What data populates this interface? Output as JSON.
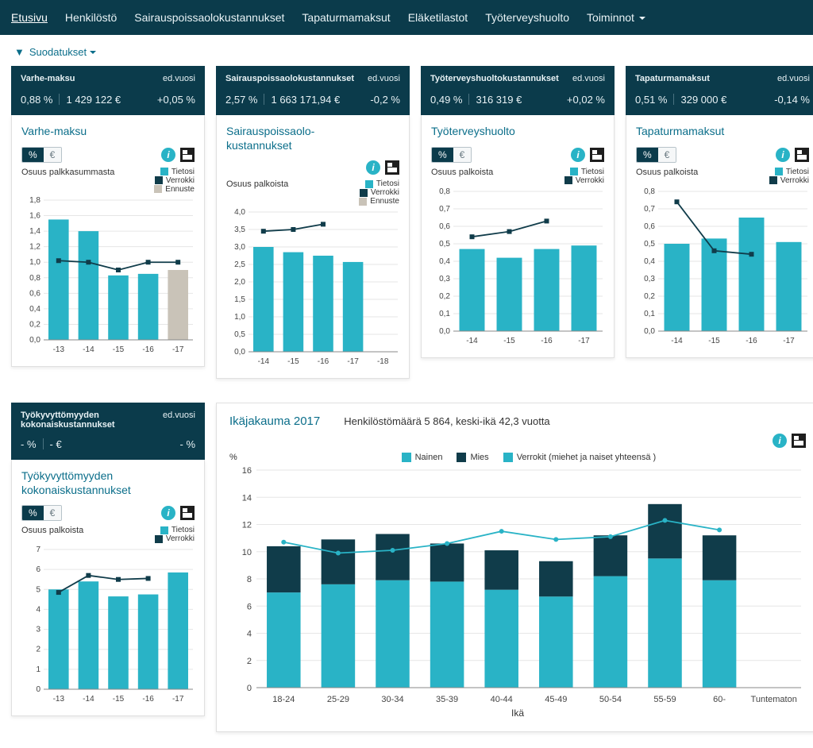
{
  "colors": {
    "nav_bg": "#0b3b4b",
    "accent": "#29b3c6",
    "dark": "#103c4a",
    "grey_bar": "#c9c3b8",
    "grid": "#e6e6e6",
    "teal_link": "#0b6e8a"
  },
  "nav": {
    "items": [
      "Etusivu",
      "Henkilöstö",
      "Sairauspoissaolokustannukset",
      "Tapaturmamaksut",
      "Eläketilastot",
      "Työterveyshuolto",
      "Toiminnot"
    ],
    "active_index": 0,
    "dropdown_index": 6
  },
  "filter": {
    "label": "Suodatukset"
  },
  "kpis": [
    {
      "title": "Varhe-maksu",
      "prev_label": "ed.vuosi",
      "pct": "0,88 %",
      "value": "1 429 122 €",
      "delta": "+0,05 %"
    },
    {
      "title": "Sairauspoissaolokustannukset",
      "prev_label": "ed.vuosi",
      "pct": "2,57 %",
      "value": "1 663 171,94 €",
      "delta": "-0,2 %"
    },
    {
      "title": "Työterveyshuoltokustannukset",
      "prev_label": "ed.vuosi",
      "pct": "0,49 %",
      "value": "316 319 €",
      "delta": "+0,02 %"
    },
    {
      "title": "Tapaturmamaksut",
      "prev_label": "ed.vuosi",
      "pct": "0,51 %",
      "value": "329 000 €",
      "delta": "-0,14 %"
    }
  ],
  "kpi2": {
    "title": "Työkyvyttömyyden kokonaiskustannukset",
    "prev_label": "ed.vuosi",
    "pct": "- %",
    "value": "- €",
    "delta": "- %"
  },
  "toggle": {
    "pct": "%",
    "eur": "€"
  },
  "legend_labels": {
    "tietosi": "Tietosi",
    "verrokki": "Verrokki",
    "ennuste": "Ennuste"
  },
  "cards": [
    {
      "title": "Varhe-maksu",
      "axis_title": "Osuus palkkasummasta",
      "legend": [
        "tietosi",
        "verrokki",
        "ennuste"
      ],
      "chart": {
        "type": "bar+line",
        "categories": [
          "-13",
          "-14",
          "-15",
          "-16",
          "-17"
        ],
        "bars": [
          1.55,
          1.4,
          0.83,
          0.85,
          0.9
        ],
        "bar_colors": [
          "#29b3c6",
          "#29b3c6",
          "#29b3c6",
          "#29b3c6",
          "#c9c3b8"
        ],
        "line": [
          1.02,
          1.0,
          0.9,
          1.0,
          1.0
        ],
        "line_color": "#103c4a",
        "ymin": 0,
        "ymax": 1.8,
        "ytick": 0.2
      }
    },
    {
      "title": "Sairauspoissaolo-\nkustannukset",
      "axis_title": "Osuus palkoista",
      "legend": [
        "tietosi",
        "verrokki",
        "ennuste"
      ],
      "chart": {
        "type": "bar+line",
        "categories": [
          "-14",
          "-15",
          "-16",
          "-17",
          "-18"
        ],
        "bars": [
          3.0,
          2.85,
          2.75,
          2.57,
          0
        ],
        "bar_colors": [
          "#29b3c6",
          "#29b3c6",
          "#29b3c6",
          "#29b3c6",
          "#c9c3b8"
        ],
        "line": [
          3.45,
          3.5,
          3.65,
          null,
          null
        ],
        "line_color": "#103c4a",
        "ymin": 0,
        "ymax": 4,
        "ytick": 0.5
      }
    },
    {
      "title": "Työterveyshuolto",
      "axis_title": "Osuus palkoista",
      "legend": [
        "tietosi",
        "verrokki"
      ],
      "chart": {
        "type": "bar+line",
        "categories": [
          "-14",
          "-15",
          "-16",
          "-17"
        ],
        "bars": [
          0.47,
          0.42,
          0.47,
          0.49
        ],
        "bar_colors": [
          "#29b3c6",
          "#29b3c6",
          "#29b3c6",
          "#29b3c6"
        ],
        "line": [
          0.54,
          0.57,
          0.63,
          null
        ],
        "line_color": "#103c4a",
        "ymin": 0,
        "ymax": 0.8,
        "ytick": 0.1
      }
    },
    {
      "title": "Tapaturmamaksut",
      "axis_title": "Osuus palkoista",
      "legend": [
        "tietosi",
        "verrokki"
      ],
      "chart": {
        "type": "bar+line",
        "categories": [
          "-14",
          "-15",
          "-16",
          "-17"
        ],
        "bars": [
          0.5,
          0.53,
          0.65,
          0.51
        ],
        "bar_colors": [
          "#29b3c6",
          "#29b3c6",
          "#29b3c6",
          "#29b3c6"
        ],
        "line": [
          0.74,
          0.46,
          0.44,
          null
        ],
        "line_color": "#103c4a",
        "ymin": 0,
        "ymax": 0.8,
        "ytick": 0.1
      }
    }
  ],
  "card5": {
    "title": "Työkyvyttömyyden kokonaiskustannukset",
    "axis_title": "Osuus palkoista",
    "legend": [
      "tietosi",
      "verrokki"
    ],
    "chart": {
      "type": "bar+line",
      "categories": [
        "-13",
        "-14",
        "-15",
        "-16",
        "-17"
      ],
      "bars": [
        5.0,
        5.4,
        4.65,
        4.75,
        5.85
      ],
      "bar_colors": [
        "#29b3c6",
        "#29b3c6",
        "#29b3c6",
        "#29b3c6",
        "#29b3c6"
      ],
      "line": [
        4.85,
        5.7,
        5.5,
        5.55,
        null
      ],
      "line_color": "#103c4a",
      "ymin": 0,
      "ymax": 7,
      "ytick": 1
    }
  },
  "age": {
    "title": "Ikäjakauma 2017",
    "subtitle": "Henkilöstömäärä 5 864, keski-ikä 42,3 vuotta",
    "y_label": "%",
    "x_label": "Ikä",
    "legend": {
      "nainen": "Nainen",
      "mies": "Mies",
      "verrokit": "Verrokit (miehet ja naiset yhteensä )"
    },
    "chart": {
      "type": "stacked+line",
      "categories": [
        "18-24",
        "25-29",
        "30-34",
        "35-39",
        "40-44",
        "45-49",
        "50-54",
        "55-59",
        "60-",
        "Tuntematon"
      ],
      "nainen": [
        7.0,
        7.6,
        7.9,
        7.8,
        7.2,
        6.7,
        8.2,
        9.5,
        7.9,
        0
      ],
      "mies": [
        3.4,
        3.3,
        3.4,
        2.8,
        2.9,
        2.6,
        3.0,
        4.0,
        3.3,
        0
      ],
      "verrokit": [
        10.7,
        9.9,
        10.1,
        10.6,
        11.5,
        10.9,
        11.1,
        12.3,
        11.6,
        null
      ],
      "colors": {
        "nainen": "#29b3c6",
        "mies": "#103c4a",
        "verrokit": "#29b3c6"
      },
      "ymin": 0,
      "ymax": 16,
      "ytick": 2
    }
  }
}
